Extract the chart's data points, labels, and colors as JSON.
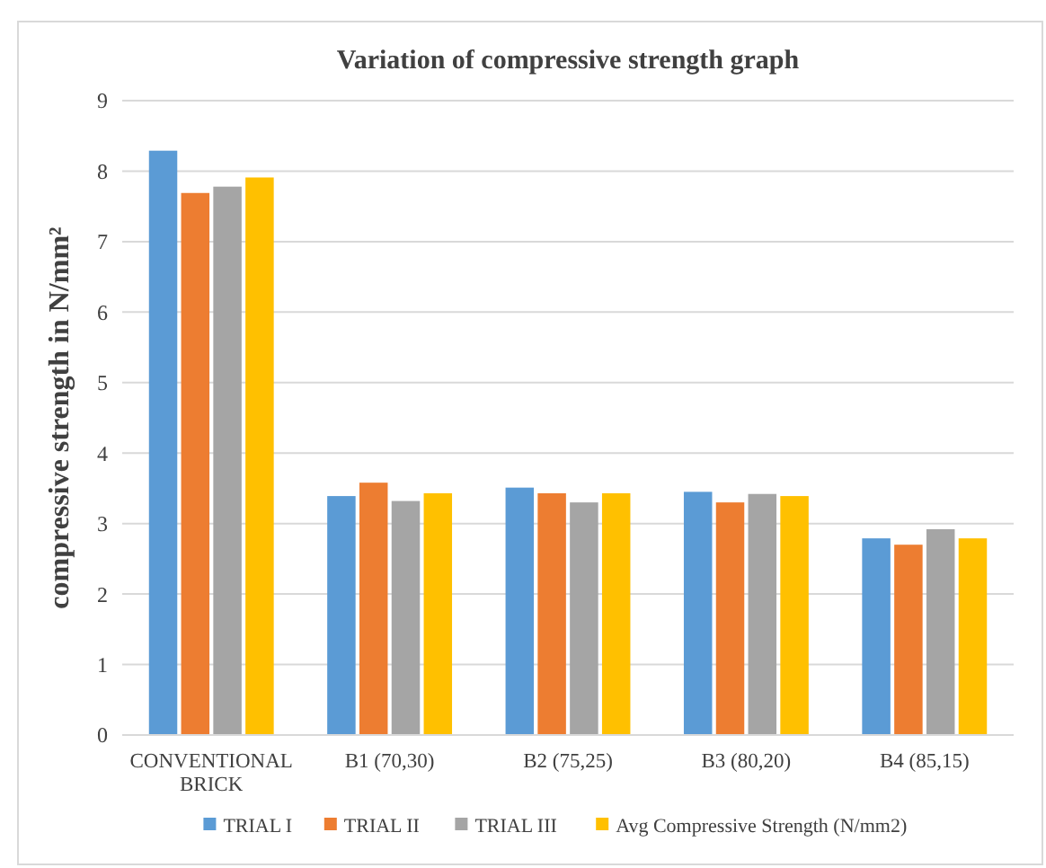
{
  "chart_data": {
    "type": "bar",
    "title": "Variation of compressive strength graph",
    "ylabel": "compressive strength in N/mm²",
    "categories": [
      "CONVENTIONAL BRICK",
      "B1 (70,30)",
      "B2 (75,25)",
      "B3 (80,20)",
      "B4 (85,15)"
    ],
    "series": [
      {
        "name": "TRIAL I",
        "color": "#5b9bd5",
        "values": [
          8.29,
          3.39,
          3.51,
          3.45,
          2.79
        ]
      },
      {
        "name": "TRIAL II",
        "color": "#ed7d31",
        "values": [
          7.69,
          3.58,
          3.43,
          3.3,
          2.7
        ]
      },
      {
        "name": "TRIAL III",
        "color": "#a5a5a5",
        "values": [
          7.78,
          3.32,
          3.3,
          3.42,
          2.92
        ]
      },
      {
        "name": "Avg Compressive Strength (N/mm2)",
        "color": "#ffc000",
        "values": [
          7.91,
          3.43,
          3.43,
          3.39,
          2.79
        ]
      }
    ],
    "ylim": [
      0,
      9
    ],
    "yticks": [
      0,
      1,
      2,
      3,
      4,
      5,
      6,
      7,
      8,
      9
    ],
    "grid": "y",
    "legend": "bottom"
  }
}
